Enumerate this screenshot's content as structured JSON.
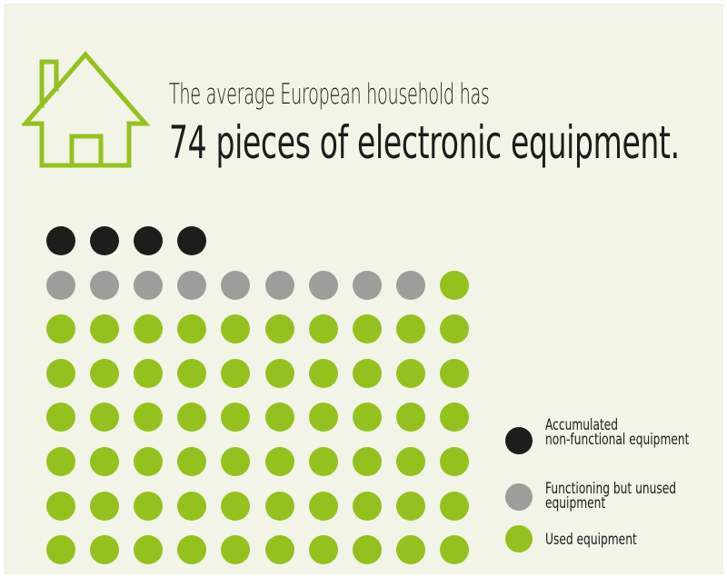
{
  "title": {
    "line1": "The average European household has",
    "line2": "74 pieces of electronic equipment."
  },
  "icon": "house-icon",
  "colors": {
    "background": "#f1f4e6",
    "accent_green": "#95c11f",
    "non_functional": "#1d1d1b",
    "unused": "#9d9d9c",
    "text": "#1c1c1c"
  },
  "chart_data": {
    "type": "waffle",
    "total": 74,
    "categories": [
      {
        "name": "Accumulated\nnon-functional equipment",
        "count": 4,
        "color": "#1d1d1b"
      },
      {
        "name": "Functioning but unused\nequipment",
        "count": 9,
        "color": "#9d9d9c"
      },
      {
        "name": "Used equipment",
        "count": 61,
        "color": "#95c11f"
      }
    ],
    "legend_position": "bottom-right"
  },
  "legend": {
    "items": [
      {
        "line1": "Accumulated",
        "line2": "non-functional equipment"
      },
      {
        "line1": "Functioning but unused",
        "line2": "equipment"
      },
      {
        "line1": "Used equipment",
        "line2": ""
      }
    ]
  }
}
